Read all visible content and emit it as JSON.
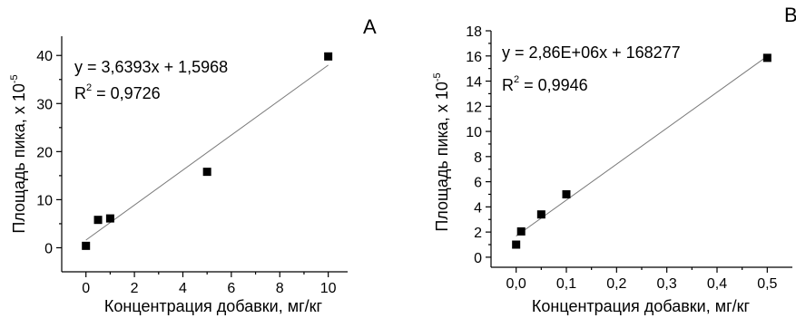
{
  "chart_data": [
    {
      "type": "scatter",
      "panel_label": "A",
      "xlabel": "Концентрация добавки, мг/кг",
      "ylabel": "Площадь пика, x 10",
      "ylabel_exp": "-5",
      "xlim": [
        -1,
        10.8
      ],
      "ylim": [
        -5,
        44
      ],
      "xticks": [
        "0",
        "2",
        "4",
        "6",
        "8",
        "10"
      ],
      "yticks": [
        "0",
        "10",
        "20",
        "30",
        "40"
      ],
      "series": [
        {
          "x": [
            0,
            0.5,
            1,
            5,
            10
          ],
          "y": [
            0.4,
            5.8,
            6.1,
            15.8,
            39.8
          ]
        }
      ],
      "fit": {
        "slope": 3.6393,
        "intercept": 1.5968,
        "x_range": [
          0,
          10
        ]
      },
      "equation": "y = 3,6393x + 1,5968",
      "r2_prefix": "R",
      "r2_exp": "2",
      "r2_value": " = 0,9726"
    },
    {
      "type": "scatter",
      "panel_label": "B",
      "xlabel": "Концентрация добавки, мг/кг",
      "ylabel": "Площадь пика, x 10",
      "ylabel_exp": "-5",
      "xlim": [
        -0.05,
        0.55
      ],
      "ylim": [
        -0.8,
        18
      ],
      "xticks": [
        "0,0",
        "0,1",
        "0,2",
        "0,3",
        "0,4",
        "0,5"
      ],
      "yticks": [
        "0",
        "2",
        "4",
        "6",
        "8",
        "10",
        "12",
        "14",
        "16",
        "18"
      ],
      "series": [
        {
          "x": [
            0,
            0.01,
            0.05,
            0.1,
            0.5
          ],
          "y": [
            1.0,
            2.05,
            3.4,
            5.0,
            15.85
          ]
        }
      ],
      "fit": {
        "slope": 28.6,
        "intercept": 1.68,
        "x_range": [
          0,
          0.5
        ]
      },
      "equation": "y = 2,86E+06x + 168277",
      "r2_prefix": "R",
      "r2_exp": "2",
      "r2_value": " = 0,9946"
    }
  ]
}
